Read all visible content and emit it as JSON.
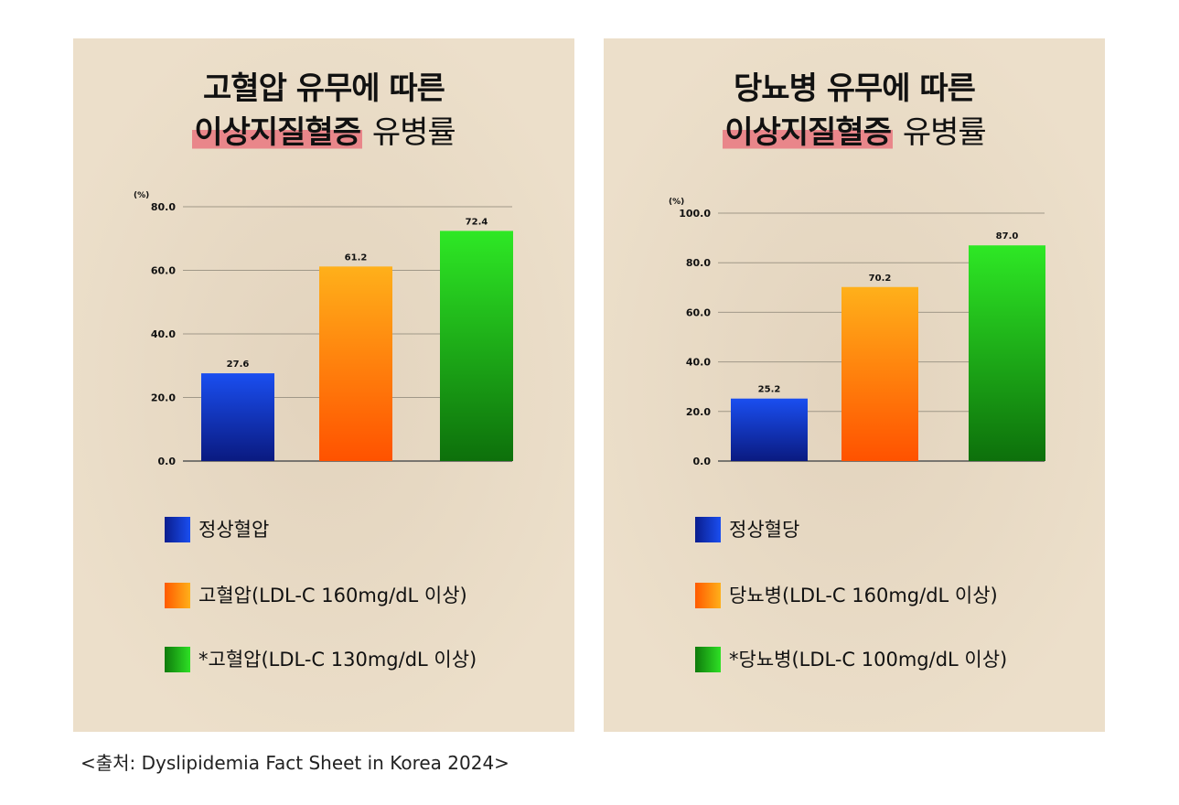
{
  "chart_data": [
    {
      "type": "bar",
      "title_line1": "고혈압 유무에 따른",
      "title_highlight": "이상지질혈증",
      "title_rest": "유병률",
      "unit": "(%)",
      "categories": [
        "정상혈압",
        "고혈압(LDL-C 160mg/dL 이상)",
        "*고혈압(LDL-C 130mg/dL 이상)"
      ],
      "values": [
        27.6,
        61.2,
        72.4
      ],
      "value_labels": [
        "27.6",
        "61.2",
        "72.4"
      ],
      "ylim": [
        0,
        80
      ],
      "yticks": [
        "0.0",
        "20.0",
        "40.0",
        "60.0",
        "80.0"
      ],
      "colors": [
        "#1234c8",
        "#ff7a0a",
        "#1cb81a"
      ],
      "grid": true,
      "legend_position": "bottom"
    },
    {
      "type": "bar",
      "title_line1": "당뇨병 유무에 따른",
      "title_highlight": "이상지질혈증",
      "title_rest": "유병률",
      "unit": "(%)",
      "categories": [
        "정상혈당",
        "당뇨병(LDL-C 160mg/dL 이상)",
        "*당뇨병(LDL-C 100mg/dL 이상)"
      ],
      "values": [
        25.2,
        70.2,
        87.0
      ],
      "value_labels": [
        "25.2",
        "70.2",
        "87.0"
      ],
      "ylim": [
        0,
        100
      ],
      "yticks": [
        "0.0",
        "20.0",
        "40.0",
        "60.0",
        "80.0",
        "100.0"
      ],
      "colors": [
        "#1234c8",
        "#ff7a0a",
        "#1cb81a"
      ],
      "grid": true,
      "legend_position": "bottom"
    }
  ],
  "source": "<출처: Dyslipidemia Fact Sheet in Korea 2024>"
}
